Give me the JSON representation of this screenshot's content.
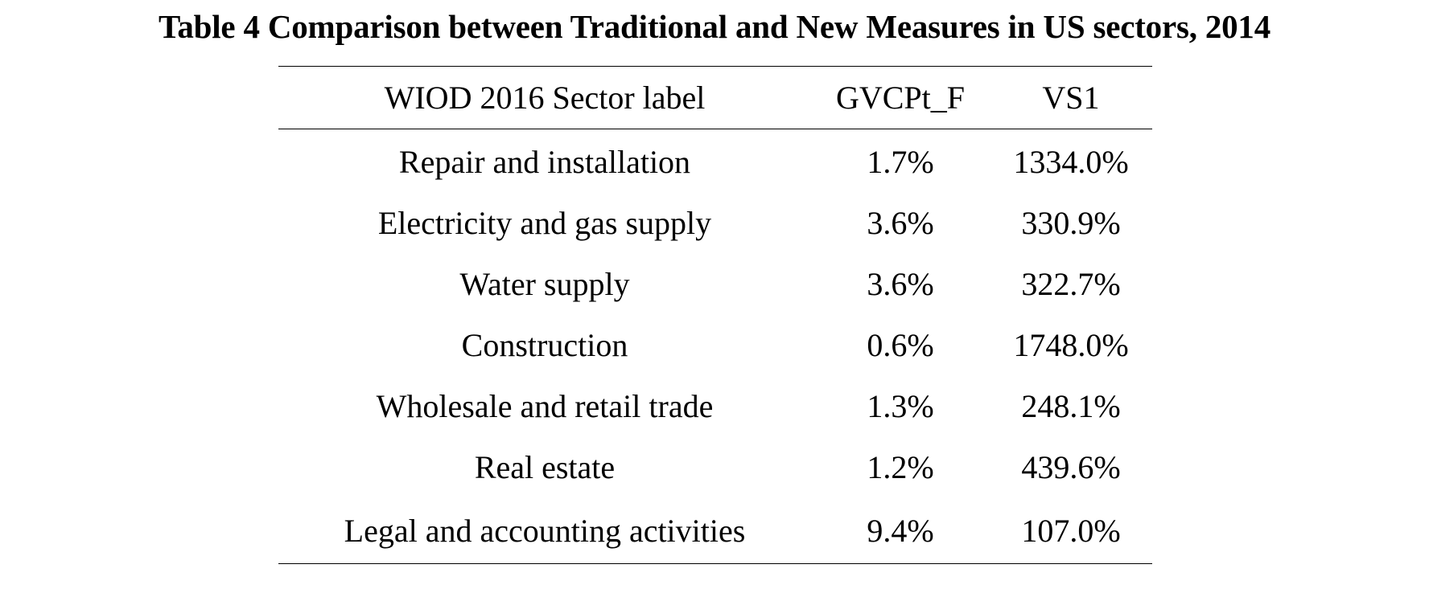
{
  "caption": "Table 4 Comparison between Traditional and New Measures in US sectors, 2014",
  "table": {
    "headers": {
      "sector": "WIOD 2016 Sector label",
      "gvcpt_f": "GVCPt_F",
      "vs1": "VS1"
    },
    "rows": [
      {
        "sector": "Repair and installation",
        "gvcpt_f": "1.7%",
        "vs1": "1334.0%"
      },
      {
        "sector": "Electricity and gas supply",
        "gvcpt_f": "3.6%",
        "vs1": "330.9%"
      },
      {
        "sector": "Water supply",
        "gvcpt_f": "3.6%",
        "vs1": "322.7%"
      },
      {
        "sector": "Construction",
        "gvcpt_f": "0.6%",
        "vs1": "1748.0%"
      },
      {
        "sector": "Wholesale and retail trade",
        "gvcpt_f": "1.3%",
        "vs1": "248.1%"
      },
      {
        "sector": "Real estate",
        "gvcpt_f": "1.2%",
        "vs1": "439.6%"
      },
      {
        "sector": "Legal and accounting activities",
        "gvcpt_f": "9.4%",
        "vs1": "107.0%"
      }
    ]
  }
}
